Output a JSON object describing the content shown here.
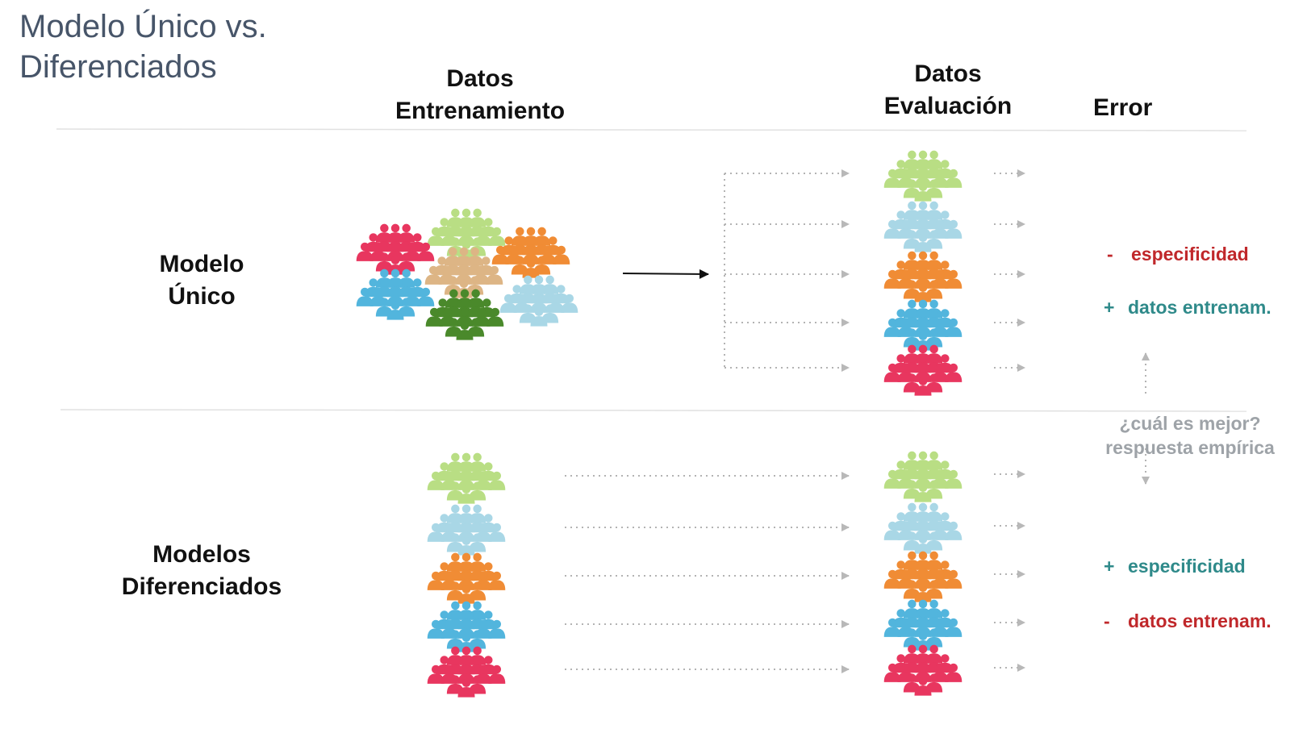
{
  "title_line1": "Modelo Único vs.",
  "title_line2": "Diferenciados",
  "headers": {
    "train_line1": "Datos",
    "train_line2": "Entrenamiento",
    "eval_line1": "Datos",
    "eval_line2": "Evaluación",
    "error": "Error"
  },
  "rows": {
    "unico_line1": "Modelo",
    "unico_line2": "Único",
    "dif_line1": "Modelos",
    "dif_line2": "Diferenciados"
  },
  "errors_unico": [
    {
      "sign": "-",
      "text": "especificidad",
      "color": "#c0282b"
    },
    {
      "sign": "+",
      "text": "datos entrenam.",
      "color": "#2f8a8a"
    }
  ],
  "errors_dif": [
    {
      "sign": "+",
      "text": "especificidad",
      "color": "#2f8a8a"
    },
    {
      "sign": "-",
      "text": "datos entrenam.",
      "color": "#c0282b"
    }
  ],
  "question_line1": "¿cuál es mejor?",
  "question_line2": "respuesta empírica",
  "group_colors": {
    "lightgreen": "#b9de84",
    "lightblue": "#a9d7e6",
    "orange": "#f08c35",
    "blue": "#52b5dd",
    "red": "#e8365f",
    "tan": "#ddb585",
    "darkgreen": "#4a892b"
  },
  "group_icon": "people-group-icon"
}
